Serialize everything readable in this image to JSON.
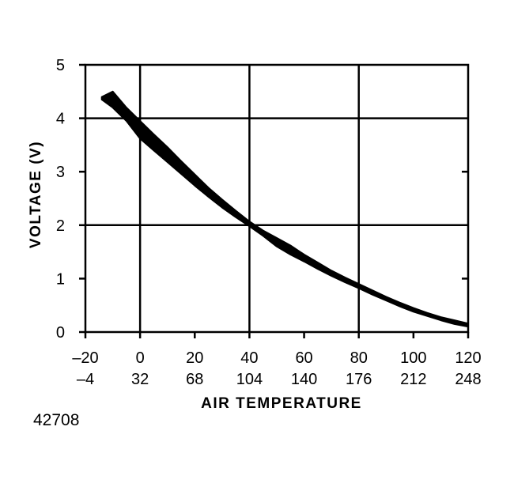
{
  "figure_id": "42708",
  "chart_data": {
    "type": "area",
    "title": "",
    "xlabel": "AIR TEMPERATURE",
    "ylabel": "VOLTAGE (V)",
    "xlim": [
      -20,
      120
    ],
    "ylim": [
      0,
      5
    ],
    "x_ticks_primary": [
      "–20",
      "0",
      "20",
      "40",
      "60",
      "80",
      "100",
      "120"
    ],
    "x_ticks_secondary": [
      "–4",
      "32",
      "68",
      "104",
      "140",
      "176",
      "212",
      "248"
    ],
    "y_ticks": [
      "0",
      "1",
      "2",
      "3",
      "4",
      "5"
    ],
    "grid": true,
    "series": [
      {
        "x": [
          -14,
          -10,
          -5,
          0,
          5,
          10,
          15,
          20,
          25,
          30,
          35,
          40,
          45,
          50,
          55,
          60,
          65,
          70,
          75,
          80,
          85,
          90,
          95,
          100,
          105,
          110,
          115,
          120
        ],
        "y_low": [
          4.35,
          4.2,
          3.95,
          3.62,
          3.4,
          3.18,
          2.96,
          2.74,
          2.53,
          2.33,
          2.15,
          1.98,
          1.8,
          1.6,
          1.45,
          1.32,
          1.18,
          1.05,
          0.93,
          0.82,
          0.7,
          0.59,
          0.48,
          0.38,
          0.3,
          0.22,
          0.15,
          0.1
        ],
        "y_high": [
          4.4,
          4.5,
          4.2,
          3.95,
          3.7,
          3.46,
          3.2,
          2.95,
          2.7,
          2.48,
          2.27,
          2.07,
          1.9,
          1.76,
          1.62,
          1.45,
          1.3,
          1.15,
          1.02,
          0.9,
          0.78,
          0.66,
          0.55,
          0.45,
          0.36,
          0.28,
          0.22,
          0.16
        ]
      }
    ],
    "colors": {
      "band": "#000000",
      "grid": "#000000",
      "background": "#ffffff"
    }
  }
}
